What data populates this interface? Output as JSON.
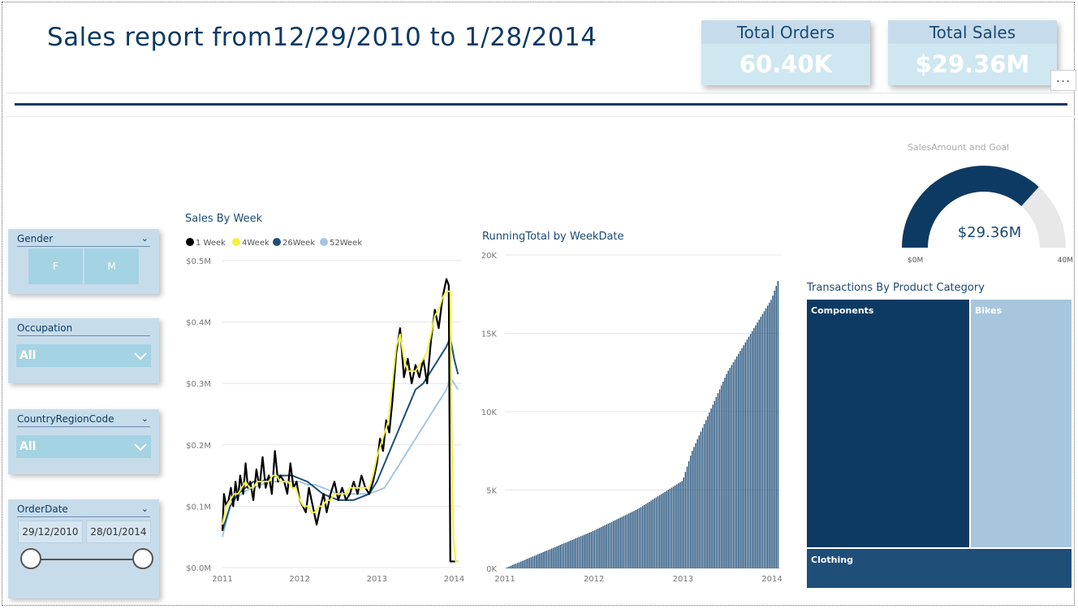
{
  "report": {
    "title": "Sales report from12/29/2010 to 1/28/2014",
    "kpis": [
      {
        "label": "Total Orders",
        "value": "60.40K"
      },
      {
        "label": "Total Sales",
        "value": "$29.36M"
      }
    ],
    "more_label": "..."
  },
  "slicers": {
    "gender": {
      "label": "Gender",
      "options": [
        "F",
        "M"
      ]
    },
    "occupation": {
      "label": "Occupation",
      "selected": "All"
    },
    "country": {
      "label": "CountryRegionCode",
      "selected": "All"
    },
    "orderdate": {
      "label": "OrderDate",
      "start": "29/12/2010",
      "end": "28/01/2014"
    }
  },
  "colors": {
    "navy": "#0d3a63",
    "dark_blue": "#1f4e79",
    "light_blue": "#a7c6de",
    "yellow": "#f2f23a",
    "gray": "#e8e8e8"
  },
  "chart_data": [
    {
      "type": "line",
      "title": "Sales By Week",
      "y_ticks": [
        "$0.0M",
        "$0.1M",
        "$0.2M",
        "$0.3M",
        "$0.4M",
        "$0.5M"
      ],
      "x_ticks": [
        "2011",
        "2012",
        "2013",
        "2014"
      ],
      "ylim": [
        0,
        0.5
      ],
      "xlim": [
        2011,
        2014.1
      ],
      "legend": "top-left",
      "series": [
        {
          "name": "1 Week",
          "color": "#000000",
          "x": [
            2011.0,
            2011.02,
            2011.05,
            2011.08,
            2011.11,
            2011.14,
            2011.17,
            2011.2,
            2011.23,
            2011.27,
            2011.3,
            2011.33,
            2011.36,
            2011.4,
            2011.44,
            2011.48,
            2011.52,
            2011.56,
            2011.6,
            2011.64,
            2011.68,
            2011.72,
            2011.75,
            2011.8,
            2011.84,
            2011.88,
            2011.92,
            2011.96,
            2012.0,
            2012.04,
            2012.08,
            2012.12,
            2012.17,
            2012.22,
            2012.27,
            2012.31,
            2012.35,
            2012.4,
            2012.45,
            2012.5,
            2012.55,
            2012.6,
            2012.65,
            2012.7,
            2012.75,
            2012.8,
            2012.85,
            2012.9,
            2012.95,
            2013.0,
            2013.04,
            2013.08,
            2013.12,
            2013.16,
            2013.2,
            2013.25,
            2013.3,
            2013.35,
            2013.4,
            2013.45,
            2013.5,
            2013.55,
            2013.6,
            2013.65,
            2013.7,
            2013.75,
            2013.8,
            2013.85,
            2013.9,
            2013.93,
            2013.95,
            2013.97,
            2013.99,
            2014.02,
            2014.05
          ],
          "y": [
            0.06,
            0.12,
            0.1,
            0.11,
            0.13,
            0.1,
            0.14,
            0.11,
            0.15,
            0.12,
            0.17,
            0.13,
            0.14,
            0.11,
            0.16,
            0.13,
            0.18,
            0.13,
            0.15,
            0.12,
            0.19,
            0.14,
            0.15,
            0.14,
            0.12,
            0.17,
            0.13,
            0.14,
            0.11,
            0.1,
            0.09,
            0.13,
            0.1,
            0.07,
            0.1,
            0.12,
            0.09,
            0.12,
            0.14,
            0.11,
            0.13,
            0.11,
            0.12,
            0.14,
            0.12,
            0.15,
            0.13,
            0.12,
            0.14,
            0.17,
            0.21,
            0.19,
            0.24,
            0.22,
            0.27,
            0.35,
            0.39,
            0.31,
            0.34,
            0.3,
            0.33,
            0.31,
            0.34,
            0.3,
            0.37,
            0.42,
            0.39,
            0.44,
            0.47,
            0.46,
            0.01,
            0.01,
            0.01,
            0.01,
            0.01
          ]
        },
        {
          "name": "4Week",
          "color": "#f2f23a",
          "x": [
            2011.0,
            2011.05,
            2011.1,
            2011.15,
            2011.2,
            2011.25,
            2011.3,
            2011.35,
            2011.4,
            2011.45,
            2011.5,
            2011.55,
            2011.6,
            2011.65,
            2011.7,
            2011.75,
            2011.8,
            2011.85,
            2011.9,
            2011.95,
            2012.0,
            2012.05,
            2012.1,
            2012.15,
            2012.2,
            2012.25,
            2012.3,
            2012.35,
            2012.4,
            2012.45,
            2012.5,
            2012.55,
            2012.6,
            2012.65,
            2012.7,
            2012.75,
            2012.8,
            2012.85,
            2012.9,
            2012.95,
            2013.0,
            2013.05,
            2013.1,
            2013.15,
            2013.2,
            2013.25,
            2013.3,
            2013.35,
            2013.4,
            2013.45,
            2013.5,
            2013.55,
            2013.6,
            2013.65,
            2013.7,
            2013.75,
            2013.8,
            2013.85,
            2013.9,
            2013.95,
            2013.97,
            2013.99,
            2014.02,
            2014.05
          ],
          "y": [
            0.07,
            0.1,
            0.11,
            0.12,
            0.12,
            0.13,
            0.14,
            0.13,
            0.13,
            0.14,
            0.14,
            0.14,
            0.14,
            0.15,
            0.15,
            0.14,
            0.14,
            0.14,
            0.13,
            0.13,
            0.11,
            0.1,
            0.1,
            0.09,
            0.09,
            0.1,
            0.1,
            0.11,
            0.11,
            0.12,
            0.12,
            0.12,
            0.12,
            0.13,
            0.13,
            0.13,
            0.13,
            0.13,
            0.13,
            0.15,
            0.18,
            0.2,
            0.22,
            0.24,
            0.3,
            0.36,
            0.38,
            0.34,
            0.32,
            0.32,
            0.32,
            0.33,
            0.34,
            0.35,
            0.38,
            0.41,
            0.42,
            0.44,
            0.45,
            0.45,
            0.2,
            0.05,
            0.01,
            0.01
          ]
        },
        {
          "name": "26Week",
          "color": "#1f4e79",
          "x": [
            2011.0,
            2011.1,
            2011.2,
            2011.3,
            2011.4,
            2011.5,
            2011.6,
            2011.7,
            2011.8,
            2011.9,
            2012.0,
            2012.1,
            2012.2,
            2012.3,
            2012.4,
            2012.5,
            2012.6,
            2012.7,
            2012.8,
            2012.9,
            2013.0,
            2013.1,
            2013.2,
            2013.3,
            2013.4,
            2013.5,
            2013.6,
            2013.7,
            2013.8,
            2013.9,
            2013.95,
            2014.0,
            2014.05
          ],
          "y": [
            0.06,
            0.1,
            0.12,
            0.13,
            0.14,
            0.14,
            0.145,
            0.15,
            0.15,
            0.15,
            0.145,
            0.14,
            0.13,
            0.12,
            0.115,
            0.11,
            0.11,
            0.11,
            0.115,
            0.12,
            0.14,
            0.17,
            0.2,
            0.23,
            0.26,
            0.29,
            0.3,
            0.32,
            0.34,
            0.36,
            0.375,
            0.34,
            0.315
          ]
        },
        {
          "name": "52Week",
          "color": "#a7c6de",
          "x": [
            2011.0,
            2011.1,
            2011.2,
            2011.3,
            2011.4,
            2011.5,
            2011.6,
            2011.7,
            2011.8,
            2011.9,
            2012.0,
            2012.1,
            2012.2,
            2012.3,
            2012.4,
            2012.5,
            2012.6,
            2012.7,
            2012.8,
            2012.9,
            2013.0,
            2013.1,
            2013.2,
            2013.3,
            2013.4,
            2013.5,
            2013.6,
            2013.7,
            2013.8,
            2013.9,
            2013.95,
            2014.0,
            2014.05
          ],
          "y": [
            0.05,
            0.1,
            0.115,
            0.125,
            0.13,
            0.135,
            0.14,
            0.14,
            0.14,
            0.14,
            0.14,
            0.135,
            0.135,
            0.13,
            0.125,
            0.12,
            0.12,
            0.12,
            0.12,
            0.12,
            0.125,
            0.13,
            0.15,
            0.17,
            0.19,
            0.21,
            0.23,
            0.25,
            0.27,
            0.29,
            0.31,
            0.3,
            0.29
          ]
        }
      ]
    },
    {
      "type": "bar",
      "title": "RunningTotal by WeekDate",
      "y_ticks": [
        "0K",
        "5K",
        "10K",
        "15K",
        "20K"
      ],
      "x_ticks": [
        "2011",
        "2012",
        "2013",
        "2014"
      ],
      "ylim": [
        0,
        20000
      ],
      "xlim": [
        2011,
        2014.1
      ],
      "bars": 160,
      "anchors": [
        [
          2011.0,
          0
        ],
        [
          2011.5,
          1200
        ],
        [
          2012.0,
          2400
        ],
        [
          2012.5,
          3800
        ],
        [
          2013.0,
          5600
        ],
        [
          2013.1,
          7400
        ],
        [
          2013.5,
          12500
        ],
        [
          2014.0,
          17200
        ],
        [
          2014.08,
          18500
        ]
      ]
    },
    {
      "type": "gauge",
      "title": "SalesAmount and Goal",
      "min_label": "$0M",
      "max_label": "40M",
      "value_label": "$29.36M",
      "value": 29.36,
      "min": 0,
      "max": 40
    },
    {
      "type": "treemap",
      "title": "Transactions By Product Category",
      "categories": [
        "Components",
        "Bikes",
        "Clothing"
      ]
    }
  ]
}
